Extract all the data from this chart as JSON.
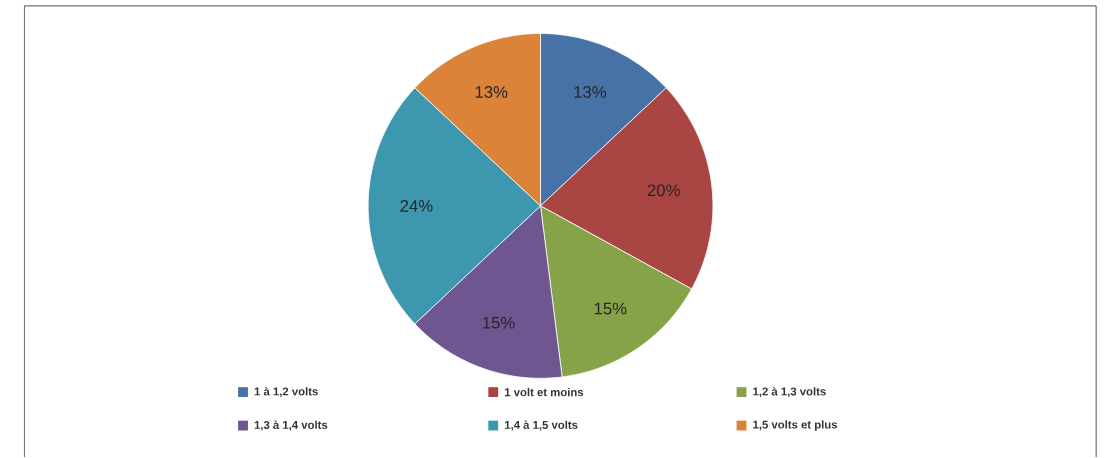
{
  "chart_data": {
    "type": "pie",
    "categories": [
      "1 à 1,2 volts",
      "1 volt et moins",
      "1,2 à 1,3 volts",
      "1,3 à 1,4 volts",
      "1,4 à 1,5 volts",
      "1,5 volts et plus"
    ],
    "values": [
      13,
      20,
      15,
      15,
      24,
      13
    ],
    "colors": [
      "#4672a8",
      "#a94543",
      "#87a34a",
      "#6f5690",
      "#3d97af",
      "#db8439"
    ],
    "value_labels": [
      "13%",
      "20%",
      "15%",
      "15%",
      "24%",
      "13%"
    ],
    "legend": "bottom"
  }
}
